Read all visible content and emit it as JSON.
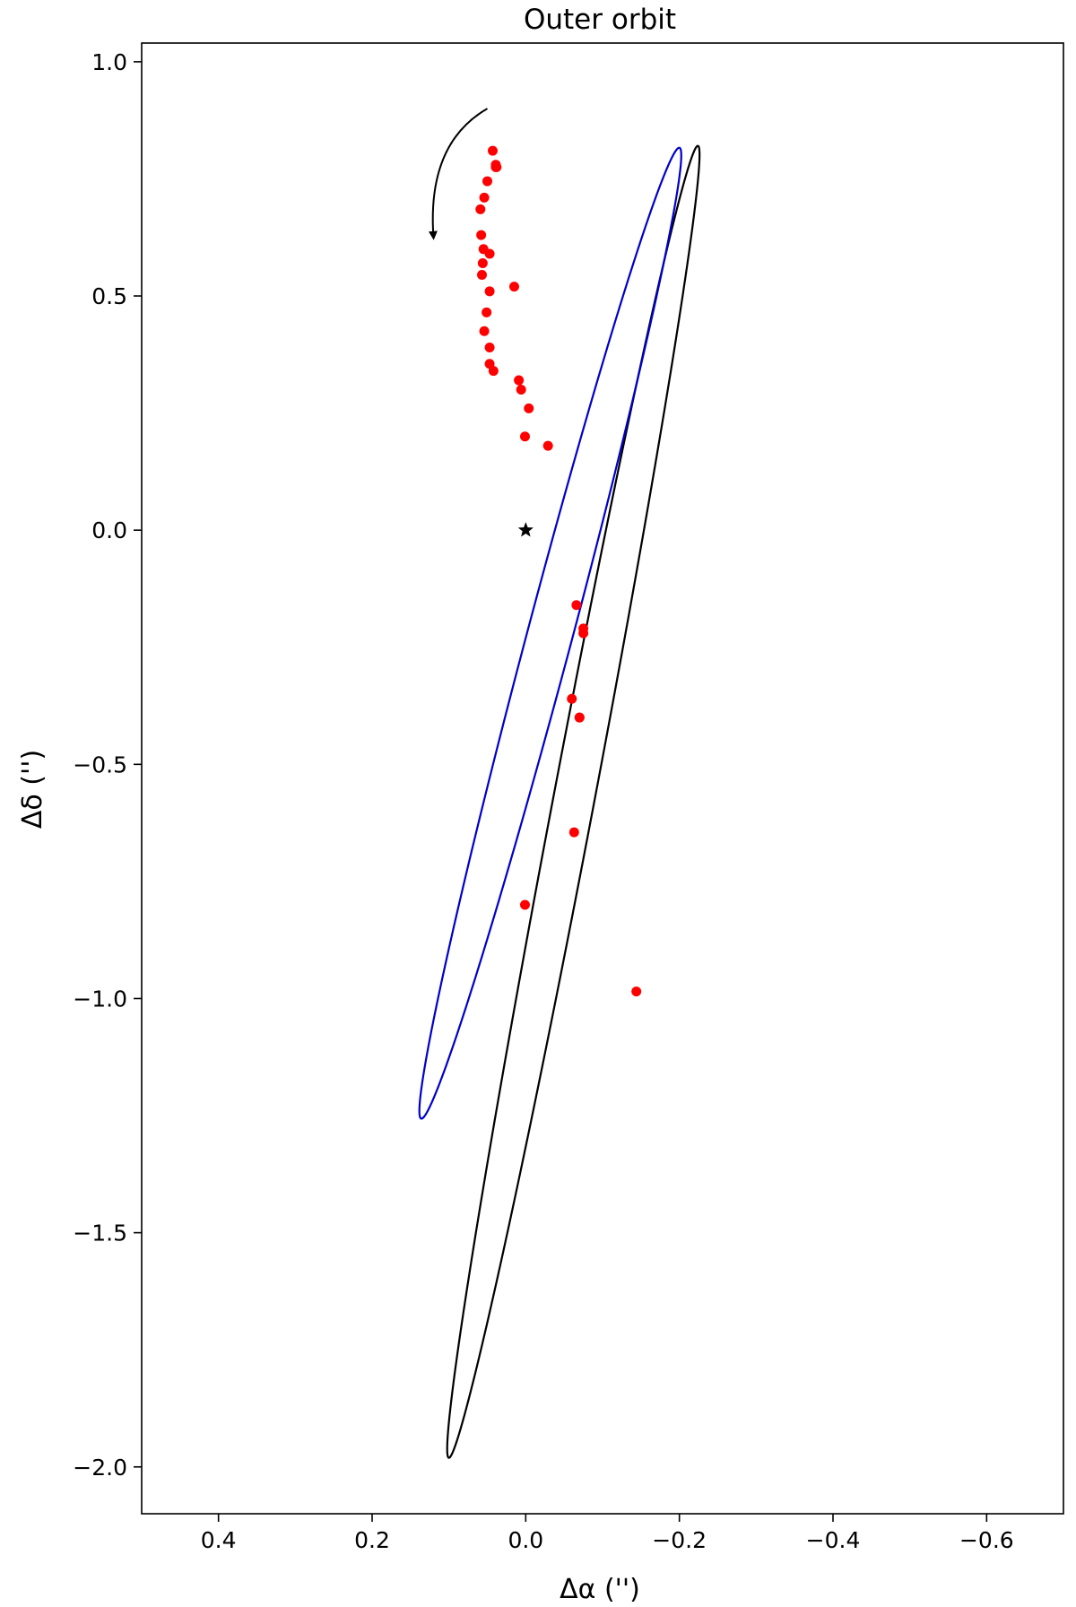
{
  "chart_data": {
    "type": "scatter",
    "title": "Outer orbit",
    "xlabel": "Δα ('')",
    "ylabel": "Δδ ('')",
    "xlim": [
      0.5,
      -0.7
    ],
    "ylim": [
      -2.1,
      1.04
    ],
    "x_inverted": true,
    "grid": false,
    "x_ticks": [
      0.4,
      0.2,
      0.0,
      -0.2,
      -0.4,
      -0.6
    ],
    "x_tick_labels": [
      "0.4",
      "0.2",
      "0.0",
      "−0.2",
      "−0.4",
      "−0.6"
    ],
    "y_ticks": [
      1.0,
      0.5,
      0.0,
      -0.5,
      -1.0,
      -1.5,
      -2.0
    ],
    "y_tick_labels": [
      "1.0",
      "0.5",
      "0.0",
      "−0.5",
      "−1.0",
      "−1.5",
      "−2.0"
    ],
    "primary_star": {
      "x": 0.0,
      "y": 0.0,
      "marker": "star",
      "color": "#000000"
    },
    "orbits": [
      {
        "color": "#000000",
        "center": [
          -0.062,
          -0.58
        ],
        "semi_axes": [
          1.41,
          0.027
        ],
        "angle_deg": 96.6
      },
      {
        "color": "#0000cc",
        "center": [
          -0.032,
          -0.22
        ],
        "semi_axes": [
          1.05,
          0.03
        ],
        "angle_deg": 99.2
      }
    ],
    "direction_arrow": {
      "from": [
        0.05,
        0.9
      ],
      "to": [
        0.12,
        0.6
      ],
      "color": "#000000"
    },
    "series": [
      {
        "color": "#ff0000",
        "marker": "circle",
        "x": [
          0.043,
          0.039,
          0.039,
          0.038,
          0.05,
          0.054,
          0.059,
          0.058,
          0.055,
          0.056,
          0.057,
          0.047,
          0.051,
          0.054,
          0.047,
          0.047,
          0.042,
          0.047,
          0.015,
          0.009,
          0.006,
          -0.004,
          0.001,
          -0.029,
          -0.066,
          -0.075,
          -0.075,
          -0.06,
          -0.07,
          -0.07,
          -0.063,
          0.001,
          -0.144
        ],
        "y": [
          0.81,
          0.78,
          0.775,
          0.775,
          0.745,
          0.71,
          0.685,
          0.63,
          0.6,
          0.57,
          0.545,
          0.51,
          0.465,
          0.425,
          0.39,
          0.355,
          0.34,
          0.59,
          0.52,
          0.32,
          0.3,
          0.26,
          0.2,
          0.18,
          -0.16,
          -0.21,
          -0.22,
          -0.36,
          -0.4,
          -0.4,
          -0.645,
          -0.8,
          -0.985
        ]
      }
    ]
  }
}
